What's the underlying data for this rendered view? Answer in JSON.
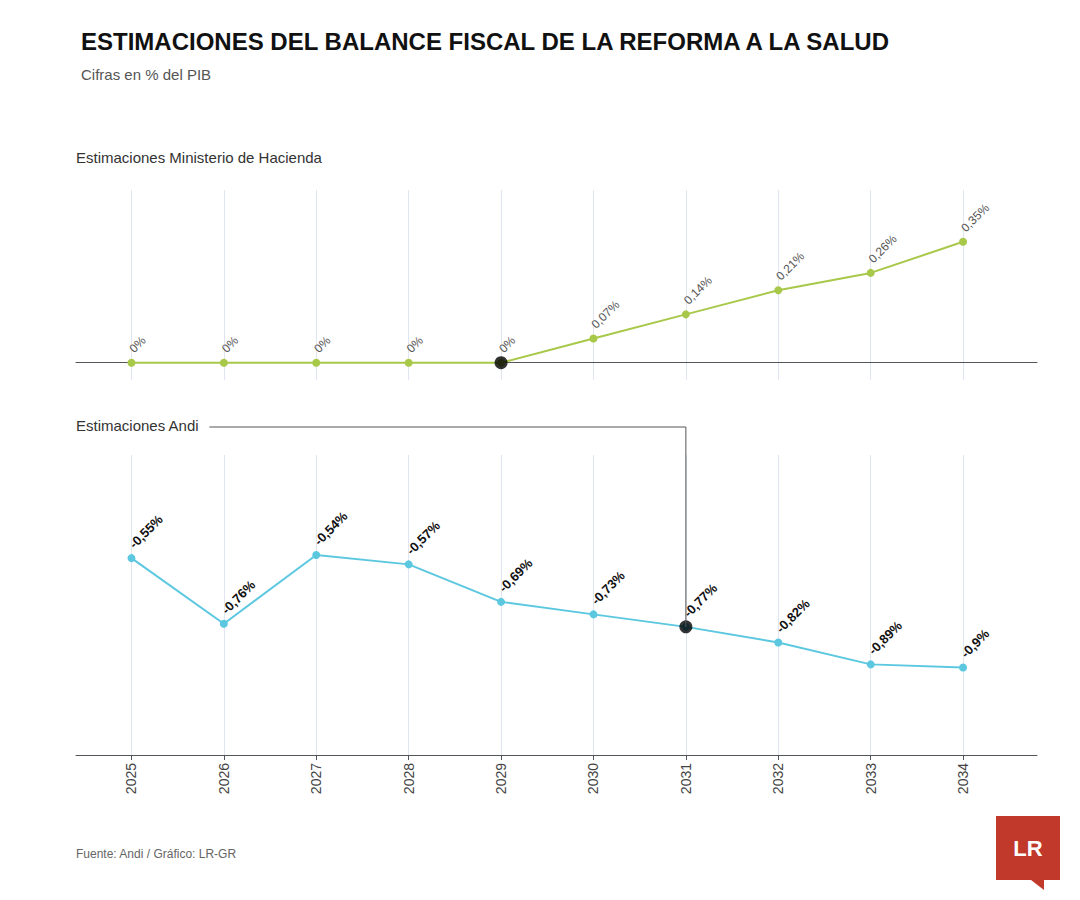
{
  "chart_data": [
    {
      "type": "line",
      "title": "ESTIMACIONES DEL BALANCE FISCAL DE LA REFORMA A LA SALUD",
      "subtitle": "Cifras en % del PIB",
      "annotations": [
        {
          "text": "Estimaciones Ministerio de Hacienda"
        }
      ],
      "x": [
        2025,
        2026,
        2027,
        2028,
        2029,
        2030,
        2031,
        2032,
        2033,
        2034
      ],
      "values": [
        0.0,
        0.0,
        0.0,
        0.0,
        0.0,
        0.07,
        0.14,
        0.21,
        0.26,
        0.35
      ],
      "value_labels": [
        "0%",
        "0%",
        "0%",
        "0%",
        "0%",
        "0,07%",
        "0,14%",
        "0,21%",
        "0,26%",
        "0,35%"
      ],
      "color": "#a8c84a",
      "marker": "circle",
      "data_labels": true,
      "highlight": {
        "x": 2029,
        "value": 0.0,
        "color": "#000000"
      },
      "xlim": [
        2024.4,
        2034.8
      ],
      "xticks": [
        2025,
        2026,
        2027,
        2028,
        2029,
        2030,
        2031,
        2032,
        2033,
        2034
      ],
      "ylim": [
        -0.05,
        0.5
      ],
      "grid": true,
      "tick_labels": false
    },
    {
      "type": "line",
      "annotations": [
        {
          "text": "Estimaciones Andi"
        },
        {
          "text": "Fuente: Andi / Gráfico: LR-GR"
        },
        {
          "text": "LR",
          "color": "#c0392b"
        }
      ],
      "x": [
        2025,
        2026,
        2027,
        2028,
        2029,
        2030,
        2031,
        2032,
        2033,
        2034
      ],
      "values": [
        -0.55,
        -0.76,
        -0.54,
        -0.57,
        -0.69,
        -0.73,
        -0.77,
        -0.82,
        -0.89,
        -0.9
      ],
      "value_labels": [
        "-0,55%",
        "-0,76%",
        "-0,54%",
        "-0,57%",
        "-0,69%",
        "-0,73%",
        "-0,77%",
        "-0,82%",
        "-0,89%",
        "-0,9%"
      ],
      "color": "#5bc8e0",
      "marker": "circle",
      "data_labels": true,
      "highlight": {
        "x": 2031,
        "value": -0.77,
        "color": "#000000"
      },
      "xlim": [
        2024.4,
        2034.8
      ],
      "xticks": [
        2025,
        2026,
        2027,
        2028,
        2029,
        2030,
        2031,
        2032,
        2033,
        2034
      ],
      "ylim": [
        -1.18,
        -0.22
      ],
      "grid": true,
      "tick_labels": "x"
    }
  ]
}
